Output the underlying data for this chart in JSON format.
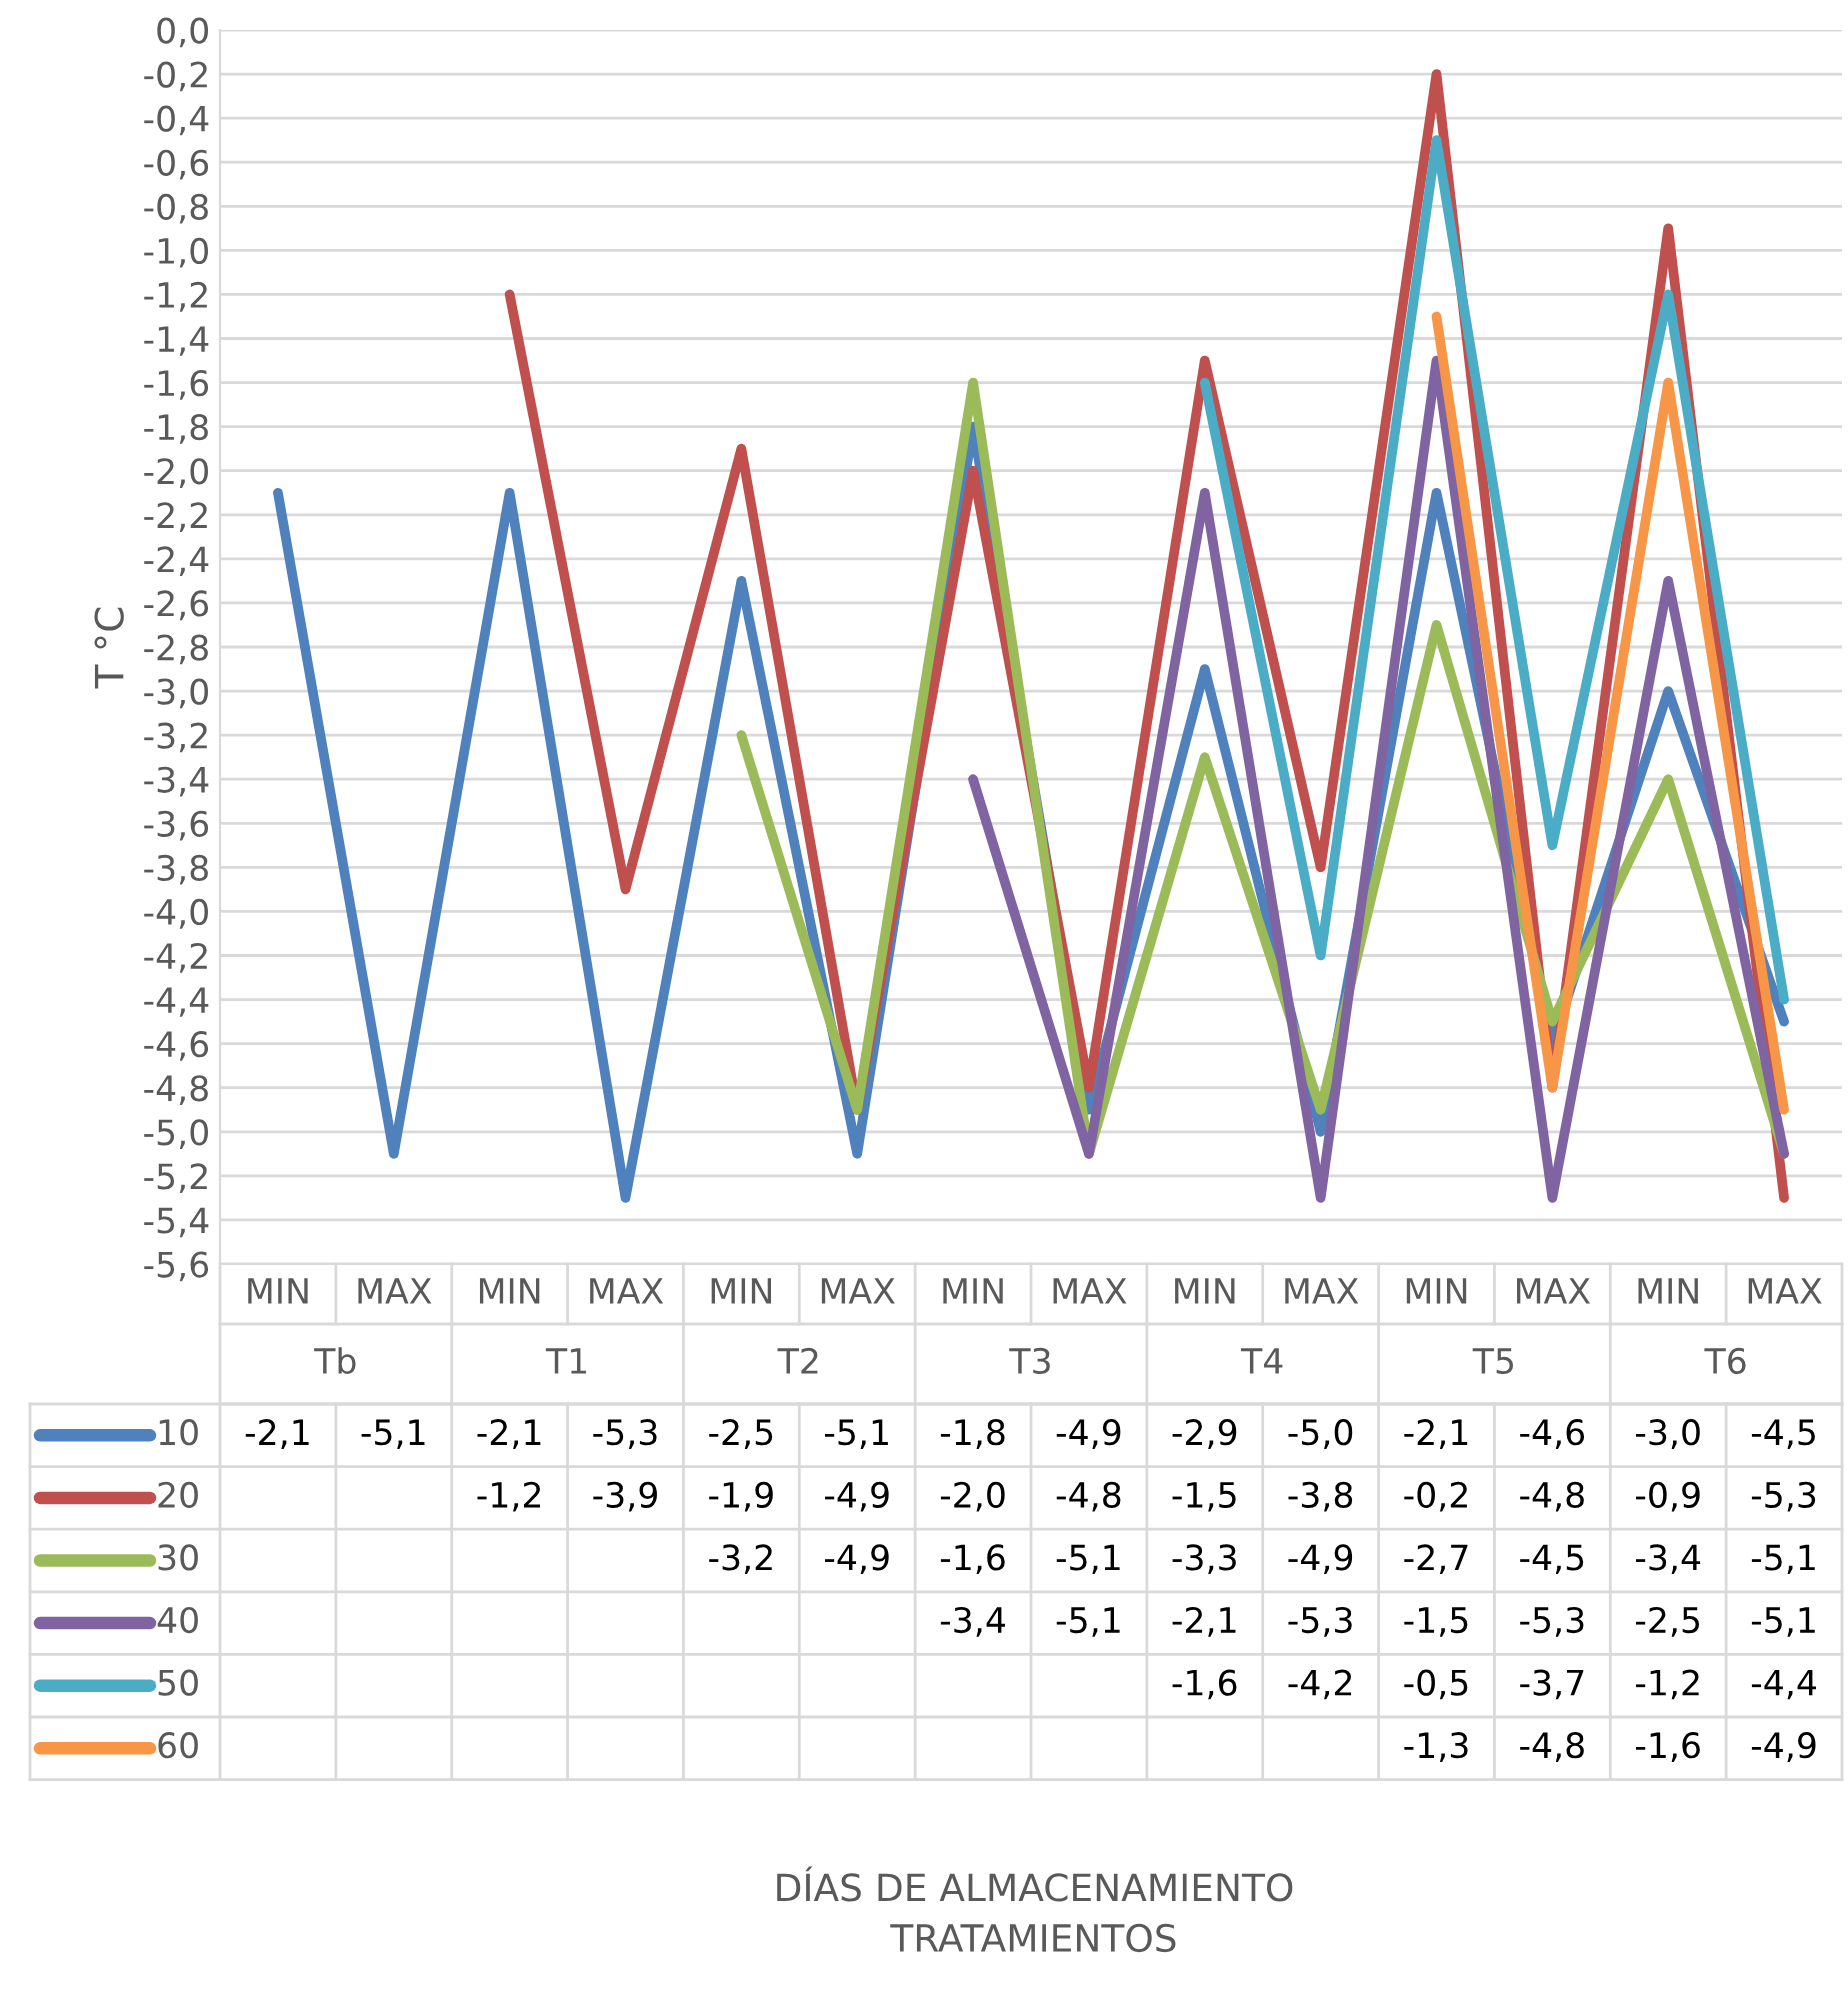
{
  "chart_data": {
    "type": "line",
    "ylabel": "T °C",
    "categories": [
      "MIN",
      "MAX",
      "MIN",
      "MAX",
      "MIN",
      "MAX",
      "MIN",
      "MAX",
      "MIN",
      "MAX",
      "MIN",
      "MAX",
      "MIN",
      "MAX"
    ],
    "annotations": [
      "Tb",
      "T1",
      "T2",
      "T3",
      "T4",
      "T5",
      "T6",
      "DÍAS DE ALMACENAMIENTO\nTRATAMIENTOS"
    ],
    "ylim": [
      -5.6,
      0
    ],
    "yticks": [
      {
        "value": 0,
        "label": "0,0"
      },
      {
        "value": -0.2,
        "label": "-0,2"
      },
      {
        "value": -0.4,
        "label": "-0,4"
      },
      {
        "value": -0.6,
        "label": "-0,6"
      },
      {
        "value": -0.8,
        "label": "-0,8"
      },
      {
        "value": -1.0,
        "label": "-1,0"
      },
      {
        "value": -1.2,
        "label": "-1,2"
      },
      {
        "value": -1.4,
        "label": "-1,4"
      },
      {
        "value": -1.6,
        "label": "-1,6"
      },
      {
        "value": -1.8,
        "label": "-1,8"
      },
      {
        "value": -2.0,
        "label": "-2,0"
      },
      {
        "value": -2.2,
        "label": "-2,2"
      },
      {
        "value": -2.4,
        "label": "-2,4"
      },
      {
        "value": -2.6,
        "label": "-2,6"
      },
      {
        "value": -2.8,
        "label": "-2,8"
      },
      {
        "value": -3.0,
        "label": "-3,0"
      },
      {
        "value": -3.2,
        "label": "-3,2"
      },
      {
        "value": -3.4,
        "label": "-3,4"
      },
      {
        "value": -3.6,
        "label": "-3,6"
      },
      {
        "value": -3.8,
        "label": "-3,8"
      },
      {
        "value": -4.0,
        "label": "-4,0"
      },
      {
        "value": -4.2,
        "label": "-4,2"
      },
      {
        "value": -4.4,
        "label": "-4,4"
      },
      {
        "value": -4.6,
        "label": "-4,6"
      },
      {
        "value": -4.8,
        "label": "-4,8"
      },
      {
        "value": -5.0,
        "label": "-5,0"
      },
      {
        "value": -5.2,
        "label": "-5,2"
      },
      {
        "value": -5.4,
        "label": "-5,4"
      },
      {
        "value": -5.6,
        "label": "-5,6"
      }
    ],
    "grid": "y",
    "legend": "bottom left",
    "marker": "none",
    "line_style": "solid",
    "series": [
      {
        "name": "10",
        "color": "#4f81bd",
        "values": [
          -2.1,
          -5.1,
          -2.1,
          -5.3,
          -2.5,
          -5.1,
          -1.8,
          -4.9,
          -2.9,
          -5.0,
          -2.1,
          -4.6,
          -3.0,
          -4.5
        ],
        "value_labels": [
          "-2,1",
          "-5,1",
          "-2,1",
          "-5,3",
          "-2,5",
          "-5,1",
          "-1,8",
          "-4,9",
          "-2,9",
          "-5,0",
          "-2,1",
          "-4,6",
          "-3,0",
          "-4,5"
        ]
      },
      {
        "name": "20",
        "color": "#c0504d",
        "values": [
          null,
          null,
          -1.2,
          -3.9,
          -1.9,
          -4.9,
          -2.0,
          -4.8,
          -1.5,
          -3.8,
          -0.2,
          -4.8,
          -0.9,
          -5.3
        ],
        "value_labels": [
          null,
          null,
          "-1,2",
          "-3,9",
          "-1,9",
          "-4,9",
          "-2,0",
          "-4,8",
          "-1,5",
          "-3,8",
          "-0,2",
          "-4,8",
          "-0,9",
          "-5,3"
        ]
      },
      {
        "name": "30",
        "color": "#9bbb59",
        "values": [
          null,
          null,
          null,
          null,
          -3.2,
          -4.9,
          -1.6,
          -5.1,
          -3.3,
          -4.9,
          -2.7,
          -4.5,
          -3.4,
          -5.1
        ],
        "value_labels": [
          null,
          null,
          null,
          null,
          "-3,2",
          "-4,9",
          "-1,6",
          "-5,1",
          "-3,3",
          "-4,9",
          "-2,7",
          "-4,5",
          "-3,4",
          "-5,1"
        ]
      },
      {
        "name": "40",
        "color": "#8064a2",
        "values": [
          null,
          null,
          null,
          null,
          null,
          null,
          -3.4,
          -5.1,
          -2.1,
          -5.3,
          -1.5,
          -5.3,
          -2.5,
          -5.1
        ],
        "value_labels": [
          null,
          null,
          null,
          null,
          null,
          null,
          "-3,4",
          "-5,1",
          "-2,1",
          "-5,3",
          "-1,5",
          "-5,3",
          "-2,5",
          "-5,1"
        ]
      },
      {
        "name": "50",
        "color": "#4bacc6",
        "values": [
          null,
          null,
          null,
          null,
          null,
          null,
          null,
          null,
          -1.6,
          -4.2,
          -0.5,
          -3.7,
          -1.2,
          -4.4
        ],
        "value_labels": [
          null,
          null,
          null,
          null,
          null,
          null,
          null,
          null,
          "-1,6",
          "-4,2",
          "-0,5",
          "-3,7",
          "-1,2",
          "-4,4"
        ]
      },
      {
        "name": "60",
        "color": "#f79646",
        "values": [
          null,
          null,
          null,
          null,
          null,
          null,
          null,
          null,
          null,
          null,
          -1.3,
          -4.8,
          -1.6,
          -4.9
        ],
        "value_labels": [
          null,
          null,
          null,
          null,
          null,
          null,
          null,
          null,
          null,
          null,
          "-1,3",
          "-4,8",
          "-1,6",
          "-4,9"
        ]
      }
    ]
  }
}
